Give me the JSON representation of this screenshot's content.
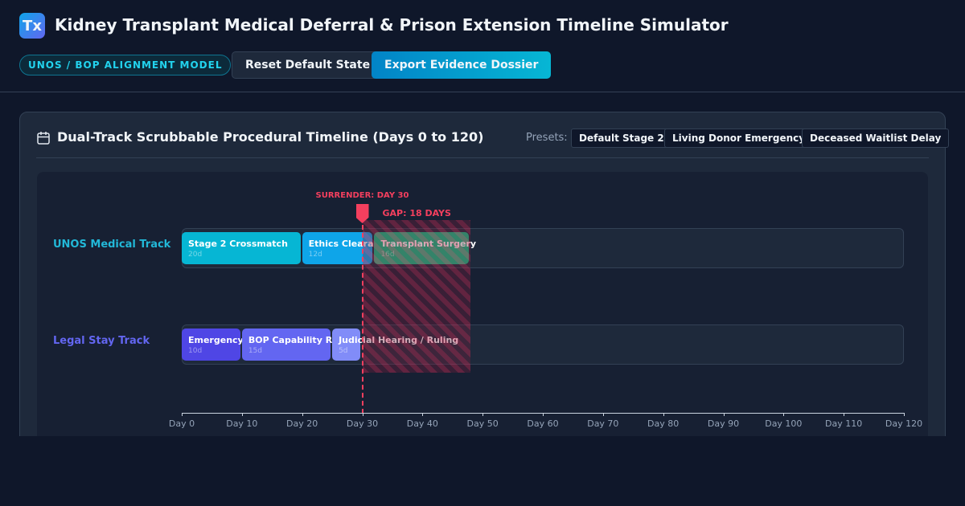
{
  "header": {
    "logo": "Tx",
    "title": "Kidney Transplant Medical Deferral & Prison Extension Timeline Simulator",
    "badge": "UNOS / BOP ALIGNMENT MODEL",
    "buttons": [
      "Reset Default State",
      "Export Evidence Dossier"
    ]
  },
  "panel": {
    "title": "Dual-Track Scrubbable Procedural Timeline (Days 0 to 120)",
    "presets_label": "Presets:",
    "presets": [
      "Default Stage 2",
      "Living Donor Emergency",
      "Deceased Waitlist Delay"
    ]
  },
  "timeline": {
    "day_range": [
      0,
      120
    ],
    "tracks": [
      {
        "name": "UNOS Medical Track",
        "color": "#22b8d8",
        "segments": [
          {
            "name": "Stage 2 Crossmatch",
            "start": 0,
            "days": 20,
            "days_label": "20d",
            "color": "#06b6d4"
          },
          {
            "name": "Ethics Cleara",
            "start": 20,
            "days": 12,
            "days_label": "12d",
            "color": "#0ea5e9"
          },
          {
            "name": "Transplant Surgery",
            "start": 32,
            "days": 16,
            "days_label": "16d",
            "color": "#10b981"
          }
        ]
      },
      {
        "name": "Legal Stay Track",
        "color": "#6366f1",
        "segments": [
          {
            "name": "Emergency",
            "start": 0,
            "days": 10,
            "days_label": "10d",
            "color": "#4f46e5"
          },
          {
            "name": "BOP Capability R",
            "start": 10,
            "days": 15,
            "days_label": "15d",
            "color": "#6366f1"
          },
          {
            "name": "Judicial Hearing / Ruling",
            "start": 25,
            "days": 5,
            "days_label": "5d",
            "color": "#818cf8"
          }
        ]
      }
    ],
    "surrender": {
      "label": "SURRENDER: DAY 30",
      "day": 30
    },
    "gap": {
      "label": "GAP: 18 DAYS",
      "days": 18
    },
    "ticks": [
      {
        "value": 0,
        "label": "Day 0"
      },
      {
        "value": 10,
        "label": "Day 10"
      },
      {
        "value": 20,
        "label": "Day 20"
      },
      {
        "value": 30,
        "label": "Day 30"
      },
      {
        "value": 40,
        "label": "Day 40"
      },
      {
        "value": 50,
        "label": "Day 50"
      },
      {
        "value": 60,
        "label": "Day 60"
      },
      {
        "value": 70,
        "label": "Day 70"
      },
      {
        "value": 80,
        "label": "Day 80"
      },
      {
        "value": 90,
        "label": "Day 90"
      },
      {
        "value": 100,
        "label": "Day 100"
      },
      {
        "value": 110,
        "label": "Day 110"
      },
      {
        "value": 120,
        "label": "Day 120"
      }
    ]
  }
}
